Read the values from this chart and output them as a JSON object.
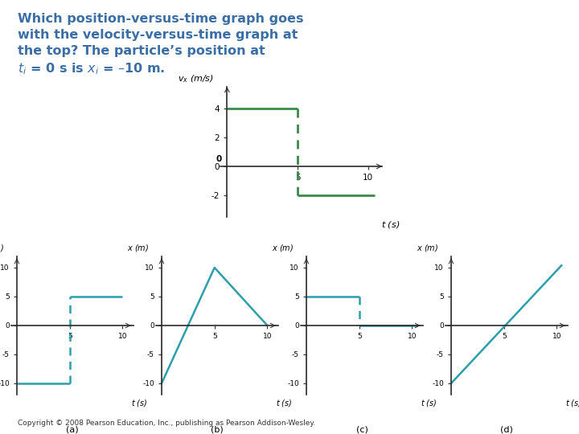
{
  "title_text": "Which position-versus-time graph goes\nwith the velocity-versus-time graph at\nthe top? The particle’s position at\n$t_i$ = 0 s is $x_i$ = –10 m.",
  "title_color": "#3a6ea5",
  "bg_color": "#ffffff",
  "green_color": "#3a8a4a",
  "teal_color": "#2b9faa",
  "axis_color": "#2a2a2a",
  "copyright": "Copyright © 2008 Pearson Education, Inc., publishing as Pearson Addison-Wesley.",
  "top_graph": {
    "ylabel": "$v_x$ (m/s)",
    "xlabel": "$t$ (s)",
    "xlim": [
      -0.5,
      11
    ],
    "ylim": [
      -3.5,
      5.5
    ],
    "yticks": [
      -2,
      0,
      2,
      4
    ],
    "xticks": [
      5,
      10
    ],
    "solid_line": [
      [
        0,
        4
      ],
      [
        5,
        4
      ]
    ],
    "dashed_line": [
      [
        5,
        4
      ],
      [
        5,
        -2
      ]
    ],
    "solid_line2": [
      [
        5,
        -2
      ],
      [
        10.5,
        -2
      ]
    ]
  },
  "sub_graphs": [
    {
      "label": "(a)",
      "ylabel": "$x$ (m)",
      "xlabel": "$t$ (s)",
      "xlim": [
        -0.5,
        11
      ],
      "ylim": [
        -12,
        12
      ],
      "yticks": [
        -10,
        -5,
        0,
        5,
        10
      ],
      "xticks": [
        5,
        10
      ],
      "lines": [
        {
          "x": [
            0,
            5
          ],
          "y": [
            -10,
            -10
          ],
          "style": "solid"
        },
        {
          "x": [
            5,
            5
          ],
          "y": [
            -10,
            5
          ],
          "style": "dashed"
        },
        {
          "x": [
            5,
            10
          ],
          "y": [
            5,
            5
          ],
          "style": "solid"
        }
      ]
    },
    {
      "label": "(b)",
      "ylabel": "$x$ (m)",
      "xlabel": "$t$ (s)",
      "xlim": [
        -0.5,
        11
      ],
      "ylim": [
        -12,
        12
      ],
      "yticks": [
        -10,
        -5,
        0,
        5,
        10
      ],
      "xticks": [
        5,
        10
      ],
      "lines": [
        {
          "x": [
            0,
            5,
            10
          ],
          "y": [
            -10,
            10,
            0
          ],
          "style": "solid"
        }
      ]
    },
    {
      "label": "(c)",
      "ylabel": "$x$ (m)",
      "xlabel": "$t$ (s)",
      "xlim": [
        -0.5,
        11
      ],
      "ylim": [
        -12,
        12
      ],
      "yticks": [
        -10,
        -5,
        0,
        5,
        10
      ],
      "xticks": [
        5,
        10
      ],
      "lines": [
        {
          "x": [
            0,
            5
          ],
          "y": [
            5,
            5
          ],
          "style": "solid"
        },
        {
          "x": [
            5,
            5
          ],
          "y": [
            5,
            0
          ],
          "style": "dashed"
        },
        {
          "x": [
            5,
            10.5
          ],
          "y": [
            0,
            0
          ],
          "style": "solid"
        }
      ]
    },
    {
      "label": "(d)",
      "ylabel": "$x$ (m)",
      "xlabel": "$t$ (s)",
      "xlim": [
        -0.5,
        11
      ],
      "ylim": [
        -12,
        12
      ],
      "yticks": [
        -10,
        -5,
        0,
        5,
        10
      ],
      "xticks": [
        5,
        10
      ],
      "lines": [
        {
          "x": [
            0,
            10.5
          ],
          "y": [
            -10,
            10.5
          ],
          "style": "solid"
        }
      ]
    }
  ]
}
